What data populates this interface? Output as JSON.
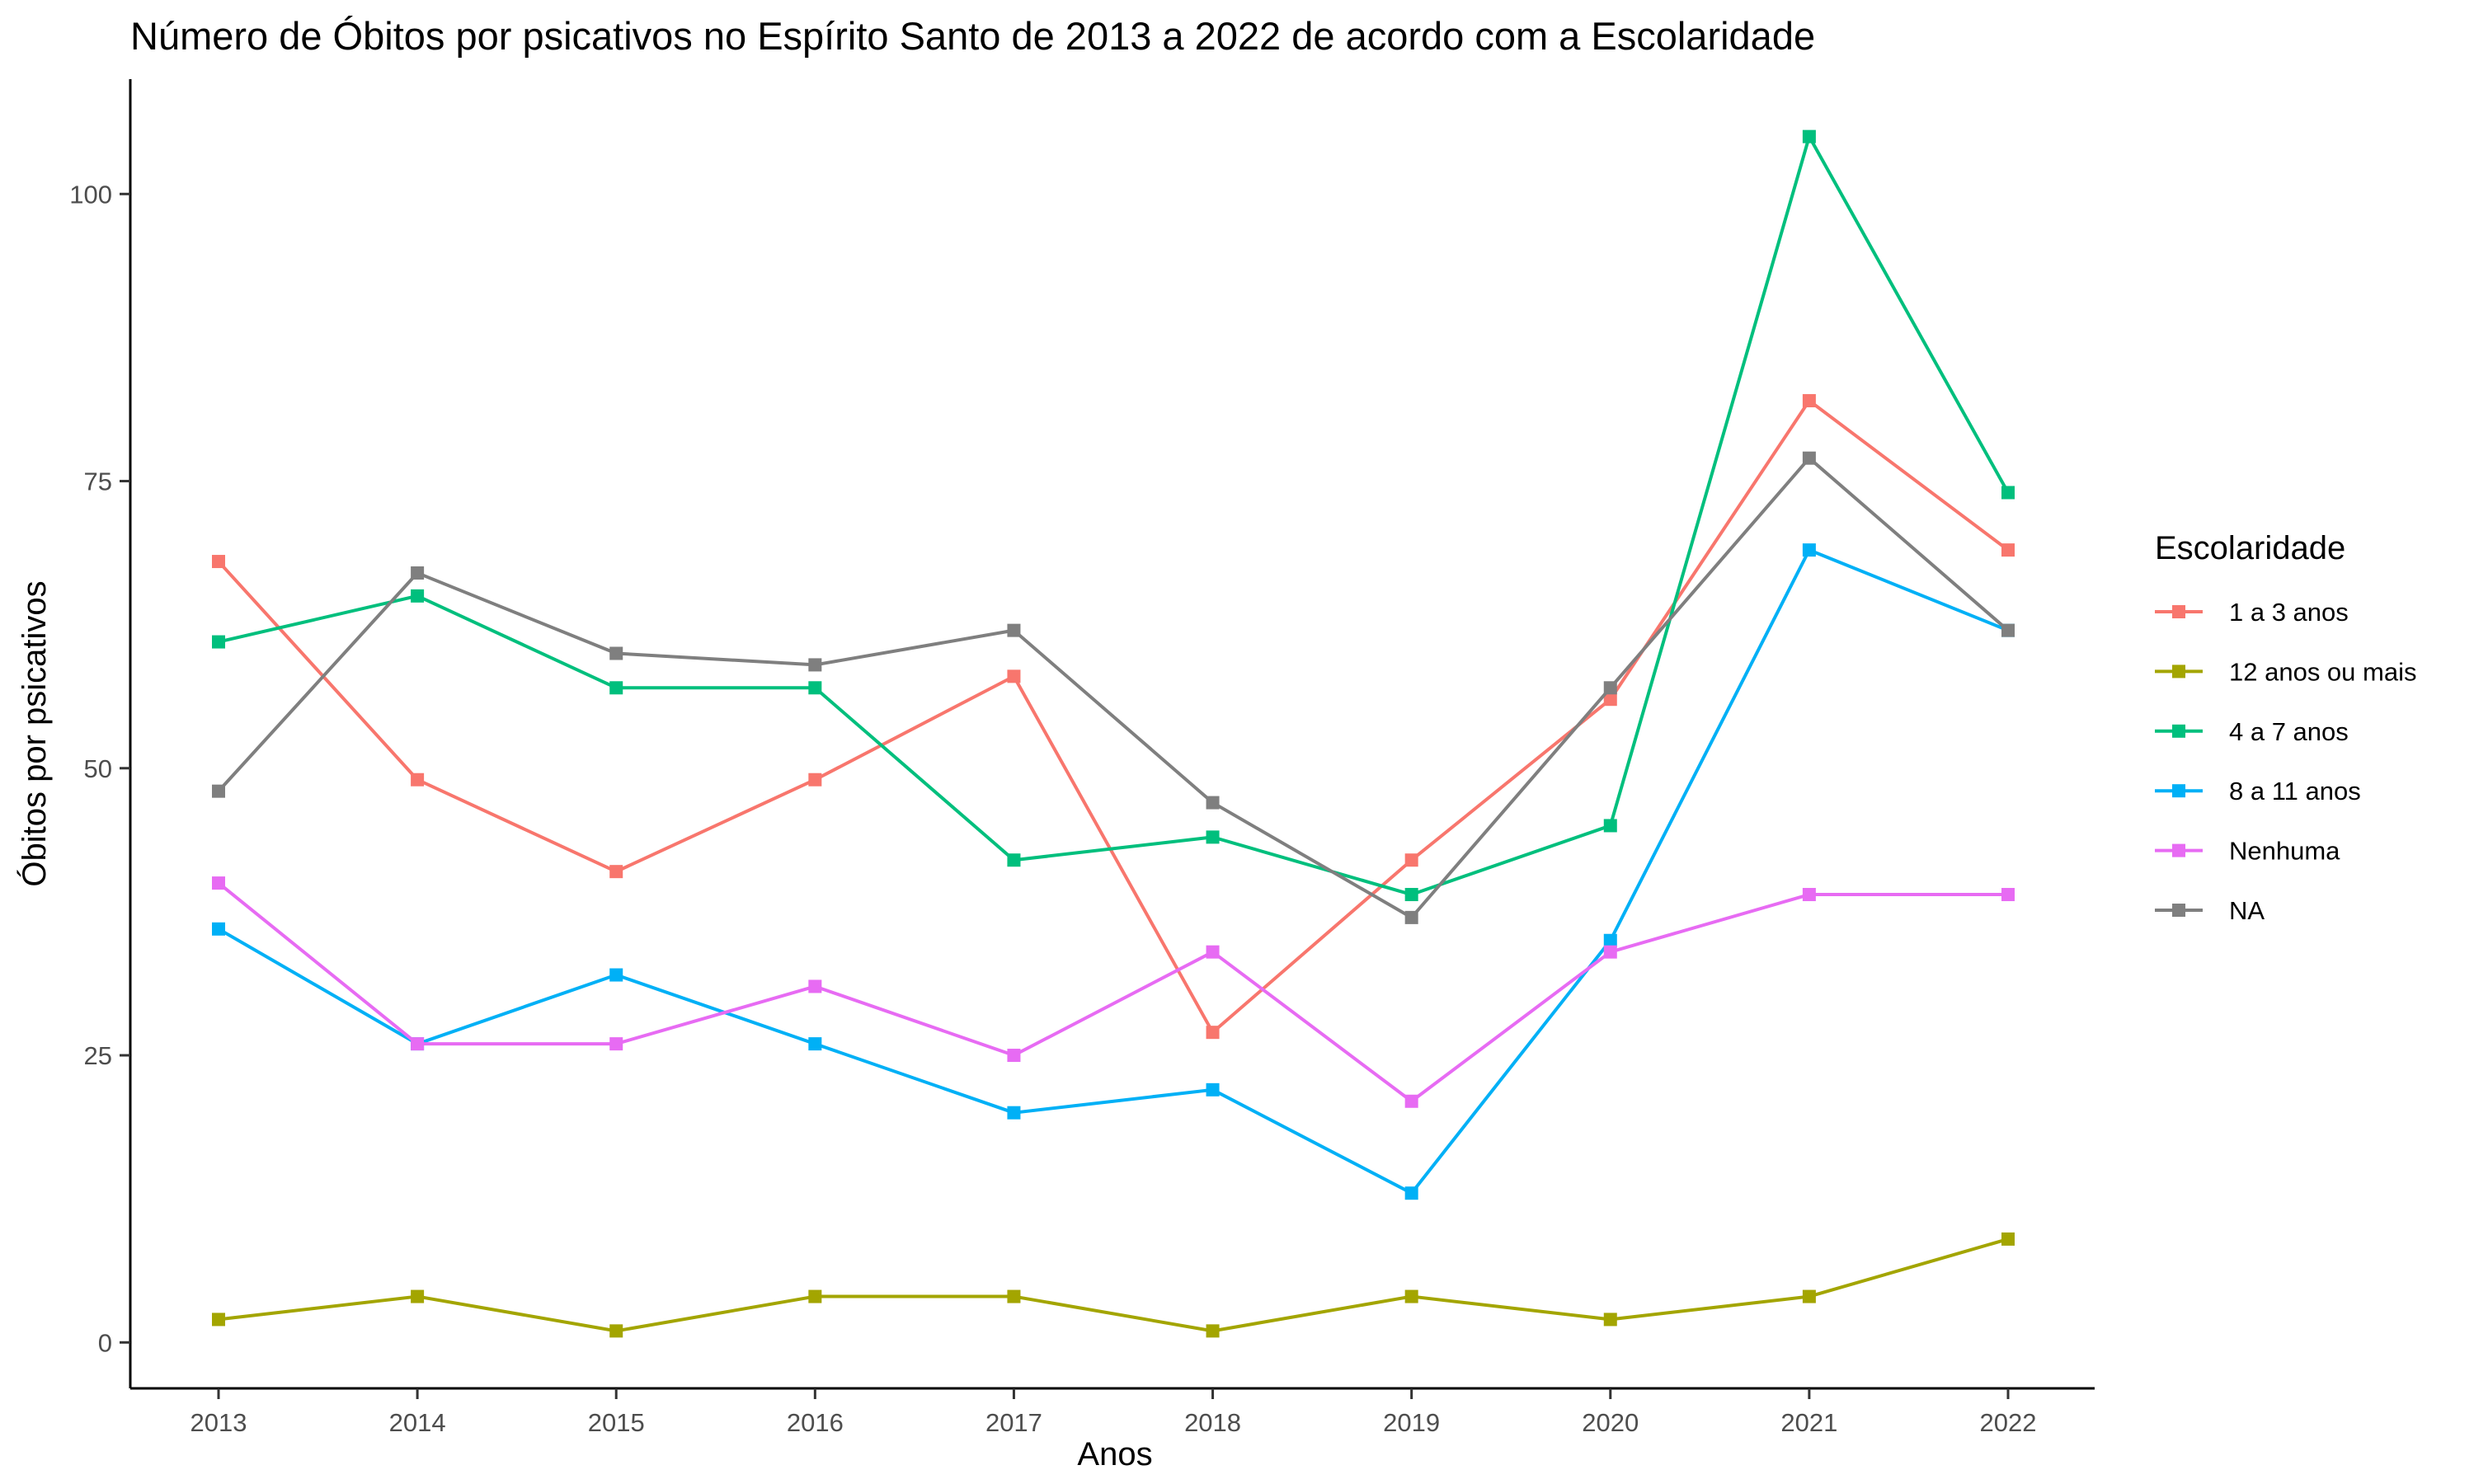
{
  "chart_data": {
    "type": "line",
    "title": "Número de Óbitos por psicativos no Espírito Santo de 2013 a 2022 de acordo com a Escolaridade",
    "xlabel": "Anos",
    "ylabel": "Óbitos por psicativos",
    "x": [
      "2013",
      "2014",
      "2015",
      "2016",
      "2017",
      "2018",
      "2019",
      "2020",
      "2021",
      "2022"
    ],
    "ylim": [
      -4,
      110
    ],
    "yticks": [
      0,
      25,
      50,
      75,
      100
    ],
    "grid": false,
    "legend": {
      "title": "Escolaridade",
      "position": "right"
    },
    "series": [
      {
        "name": "1 a 3 anos",
        "color": "#F8766D",
        "values": [
          68,
          49,
          41,
          49,
          58,
          27,
          42,
          56,
          82,
          69
        ]
      },
      {
        "name": "12 anos ou mais",
        "color": "#A3A500",
        "values": [
          2,
          4,
          1,
          4,
          4,
          1,
          4,
          2,
          4,
          9
        ]
      },
      {
        "name": "4 a 7 anos",
        "color": "#00BF7D",
        "values": [
          61,
          65,
          57,
          57,
          42,
          44,
          39,
          45,
          105,
          74
        ]
      },
      {
        "name": "8 a 11 anos",
        "color": "#00B0F6",
        "values": [
          36,
          26,
          32,
          26,
          20,
          22,
          13,
          35,
          69,
          62
        ]
      },
      {
        "name": "Nenhuma",
        "color": "#E76BF3",
        "values": [
          40,
          26,
          26,
          31,
          25,
          34,
          21,
          34,
          39,
          39
        ]
      },
      {
        "name": "NA",
        "color": "#7F7F7F",
        "values": [
          48,
          67,
          60,
          59,
          62,
          47,
          37,
          57,
          77,
          62
        ]
      }
    ]
  }
}
